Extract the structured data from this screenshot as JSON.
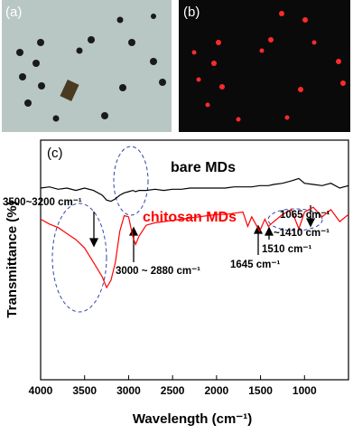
{
  "chart_data": {
    "type": "line",
    "panel_labels": [
      "(a)",
      "(b)",
      "(c)"
    ],
    "xlabel": "Wavelength (cm⁻¹)",
    "ylabel": "Transmittance (%)",
    "x": [
      4000,
      3900,
      3800,
      3700,
      3600,
      3500,
      3400,
      3300,
      3250,
      3200,
      3150,
      3100,
      3050,
      3000,
      2950,
      2920,
      2880,
      2800,
      2700,
      2600,
      2500,
      2400,
      2300,
      2200,
      2100,
      2000,
      1900,
      1800,
      1700,
      1645,
      1600,
      1510,
      1450,
      1410,
      1350,
      1250,
      1150,
      1065,
      1000,
      900,
      800,
      700,
      600,
      500
    ],
    "series": [
      {
        "name": "bare MDs",
        "color": "#000000",
        "values": [
          80,
          80.5,
          79.5,
          80,
          79,
          80,
          79,
          77,
          75,
          74.5,
          75.5,
          77,
          78,
          78.5,
          79,
          78.5,
          79,
          79,
          79.5,
          79,
          79.5,
          79.5,
          80,
          80,
          80,
          80,
          80,
          80.5,
          80.5,
          80.5,
          80.5,
          81,
          81,
          81,
          81.5,
          82,
          83,
          84,
          82,
          81.5,
          81,
          82,
          80,
          81
        ]
      },
      {
        "name": "chitosan MDs",
        "color": "#ff0000",
        "values": [
          67,
          65,
          63.5,
          61,
          58.5,
          55,
          49,
          43,
          38.5,
          41.5,
          49,
          62,
          68.5,
          68,
          59.5,
          56.5,
          60,
          64.5,
          65.5,
          66,
          66.5,
          67,
          67.5,
          68,
          68.5,
          69,
          69,
          69.5,
          70,
          64,
          68,
          62,
          67,
          64,
          66,
          69,
          71,
          63,
          70,
          72,
          68,
          71,
          66,
          69
        ]
      }
    ],
    "annotations": [
      "3500~3200 cm⁻¹",
      "3000 ~ 2880 cm⁻¹",
      "1645 cm⁻¹",
      "1510 cm⁻¹",
      "~1410 cm⁻¹",
      "1065 cm⁻¹"
    ],
    "xlim": [
      4000,
      500
    ],
    "xticks": [
      4000,
      3500,
      3000,
      2500,
      2000,
      1500,
      1000
    ],
    "ylim": [
      0,
      100
    ]
  }
}
